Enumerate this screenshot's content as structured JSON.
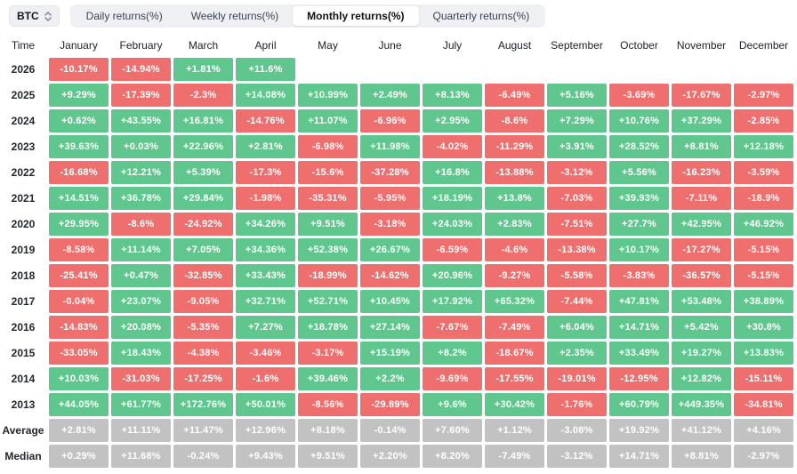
{
  "controls": {
    "symbol": "BTC",
    "tabs": [
      {
        "label": "Daily returns(%)",
        "active": false
      },
      {
        "label": "Weekly returns(%)",
        "active": false
      },
      {
        "label": "Monthly returns(%)",
        "active": true
      },
      {
        "label": "Quarterly returns(%)",
        "active": false
      }
    ]
  },
  "chart_data": {
    "type": "heatmap",
    "title": "Monthly returns(%)",
    "columns": [
      "Time",
      "January",
      "February",
      "March",
      "April",
      "May",
      "June",
      "July",
      "August",
      "September",
      "October",
      "November",
      "December"
    ],
    "colors": {
      "positive": "#5fc78e",
      "negative": "#ee6f6e",
      "summary": "#c2c2c2"
    },
    "rows": [
      {
        "label": "2026",
        "kind": "year",
        "values": [
          "-10.17%",
          "-14.94%",
          "+1.81%",
          "+11.6%",
          "",
          "",
          "",
          "",
          "",
          "",
          "",
          ""
        ]
      },
      {
        "label": "2025",
        "kind": "year",
        "values": [
          "+9.29%",
          "-17.39%",
          "-2.3%",
          "+14.08%",
          "+10.99%",
          "+2.49%",
          "+8.13%",
          "-6.49%",
          "+5.16%",
          "-3.69%",
          "-17.67%",
          "-2.97%"
        ]
      },
      {
        "label": "2024",
        "kind": "year",
        "values": [
          "+0.62%",
          "+43.55%",
          "+16.81%",
          "-14.76%",
          "+11.07%",
          "-6.96%",
          "+2.95%",
          "-8.6%",
          "+7.29%",
          "+10.76%",
          "+37.29%",
          "-2.85%"
        ]
      },
      {
        "label": "2023",
        "kind": "year",
        "values": [
          "+39.63%",
          "+0.03%",
          "+22.96%",
          "+2.81%",
          "-6.98%",
          "+11.98%",
          "-4.02%",
          "-11.29%",
          "+3.91%",
          "+28.52%",
          "+8.81%",
          "+12.18%"
        ]
      },
      {
        "label": "2022",
        "kind": "year",
        "values": [
          "-16.68%",
          "+12.21%",
          "+5.39%",
          "-17.3%",
          "-15.6%",
          "-37.28%",
          "+16.8%",
          "-13.88%",
          "-3.12%",
          "+5.56%",
          "-16.23%",
          "-3.59%"
        ]
      },
      {
        "label": "2021",
        "kind": "year",
        "values": [
          "+14.51%",
          "+36.78%",
          "+29.84%",
          "-1.98%",
          "-35.31%",
          "-5.95%",
          "+18.19%",
          "+13.8%",
          "-7.03%",
          "+39.93%",
          "-7.11%",
          "-18.9%"
        ]
      },
      {
        "label": "2020",
        "kind": "year",
        "values": [
          "+29.95%",
          "-8.6%",
          "-24.92%",
          "+34.26%",
          "+9.51%",
          "-3.18%",
          "+24.03%",
          "+2.83%",
          "-7.51%",
          "+27.7%",
          "+42.95%",
          "+46.92%"
        ]
      },
      {
        "label": "2019",
        "kind": "year",
        "values": [
          "-8.58%",
          "+11.14%",
          "+7.05%",
          "+34.36%",
          "+52.38%",
          "+26.67%",
          "-6.59%",
          "-4.6%",
          "-13.38%",
          "+10.17%",
          "-17.27%",
          "-5.15%"
        ]
      },
      {
        "label": "2018",
        "kind": "year",
        "values": [
          "-25.41%",
          "+0.47%",
          "-32.85%",
          "+33.43%",
          "-18.99%",
          "-14.62%",
          "+20.96%",
          "-9.27%",
          "-5.58%",
          "-3.83%",
          "-36.57%",
          "-5.15%"
        ]
      },
      {
        "label": "2017",
        "kind": "year",
        "values": [
          "-0.04%",
          "+23.07%",
          "-9.05%",
          "+32.71%",
          "+52.71%",
          "+10.45%",
          "+17.92%",
          "+65.32%",
          "-7.44%",
          "+47.81%",
          "+53.48%",
          "+38.89%"
        ]
      },
      {
        "label": "2016",
        "kind": "year",
        "values": [
          "-14.83%",
          "+20.08%",
          "-5.35%",
          "+7.27%",
          "+18.78%",
          "+27.14%",
          "-7.67%",
          "-7.49%",
          "+6.04%",
          "+14.71%",
          "+5.42%",
          "+30.8%"
        ]
      },
      {
        "label": "2015",
        "kind": "year",
        "values": [
          "-33.05%",
          "+18.43%",
          "-4.38%",
          "-3.46%",
          "-3.17%",
          "+15.19%",
          "+8.2%",
          "-18.67%",
          "+2.35%",
          "+33.49%",
          "+19.27%",
          "+13.83%"
        ]
      },
      {
        "label": "2014",
        "kind": "year",
        "values": [
          "+10.03%",
          "-31.03%",
          "-17.25%",
          "-1.6%",
          "+39.46%",
          "+2.2%",
          "-9.69%",
          "-17.55%",
          "-19.01%",
          "-12.95%",
          "+12.82%",
          "-15.11%"
        ]
      },
      {
        "label": "2013",
        "kind": "year",
        "values": [
          "+44.05%",
          "+61.77%",
          "+172.76%",
          "+50.01%",
          "-8.56%",
          "-29.89%",
          "+9.6%",
          "+30.42%",
          "-1.76%",
          "+60.79%",
          "+449.35%",
          "-34.81%"
        ]
      },
      {
        "label": "Average",
        "kind": "summary",
        "values": [
          "+2.81%",
          "+11.11%",
          "+11.47%",
          "+12.96%",
          "+8.18%",
          "-0.14%",
          "+7.60%",
          "+1.12%",
          "-3.08%",
          "+19.92%",
          "+41.12%",
          "+4.16%"
        ]
      },
      {
        "label": "Median",
        "kind": "summary",
        "values": [
          "+0.29%",
          "+11.68%",
          "-0.24%",
          "+9.43%",
          "+9.51%",
          "+2.20%",
          "+8.20%",
          "-7.49%",
          "-3.12%",
          "+14.71%",
          "+8.81%",
          "-2.97%"
        ]
      }
    ]
  }
}
